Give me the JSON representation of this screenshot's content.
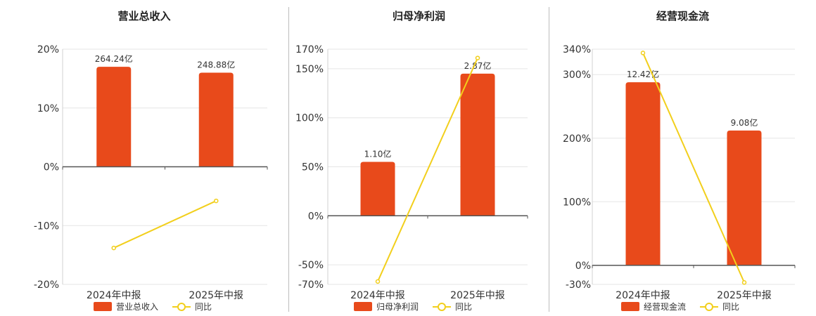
{
  "legend_line_label": "同比",
  "chart_data": [
    {
      "type": "bar",
      "title": "营业总收入",
      "categories": [
        "2024年中报",
        "2025年中报"
      ],
      "bar_series_name": "营业总收入",
      "bar_label_values": [
        264.24,
        248.88
      ],
      "bar_labels": [
        "264.24亿",
        "248.88亿"
      ],
      "line_series_name": "同比",
      "line_values": [
        -13.8,
        -5.8
      ],
      "yaxis_unit": "%",
      "ylim": [
        -20,
        20
      ],
      "yticks": [
        -20,
        -10,
        0,
        10,
        20
      ],
      "bar_heights_on_axis": [
        17,
        16
      ],
      "grid": true,
      "legend_position": "bottom"
    },
    {
      "type": "bar",
      "title": "归母净利润",
      "categories": [
        "2024年中报",
        "2025年中报"
      ],
      "bar_series_name": "归母净利润",
      "bar_label_values": [
        1.1,
        2.87
      ],
      "bar_labels": [
        "1.10亿",
        "2.87亿"
      ],
      "line_series_name": "同比",
      "line_values": [
        -67,
        161
      ],
      "yaxis_unit": "%",
      "ylim": [
        -70,
        170
      ],
      "yticks": [
        -70,
        -50,
        0,
        50,
        100,
        150,
        170
      ],
      "bar_heights_on_axis": [
        55,
        145
      ],
      "grid": true,
      "legend_position": "bottom"
    },
    {
      "type": "bar",
      "title": "经营现金流",
      "categories": [
        "2024年中报",
        "2025年中报"
      ],
      "bar_series_name": "经营现金流",
      "bar_label_values": [
        12.42,
        9.08
      ],
      "bar_labels": [
        "12.42亿",
        "9.08亿"
      ],
      "line_series_name": "同比",
      "line_values": [
        334,
        -27
      ],
      "yaxis_unit": "%",
      "ylim": [
        -30,
        340
      ],
      "yticks": [
        -30,
        0,
        100,
        200,
        300,
        340
      ],
      "bar_heights_on_axis": [
        288,
        212
      ],
      "grid": true,
      "legend_position": "bottom"
    }
  ]
}
